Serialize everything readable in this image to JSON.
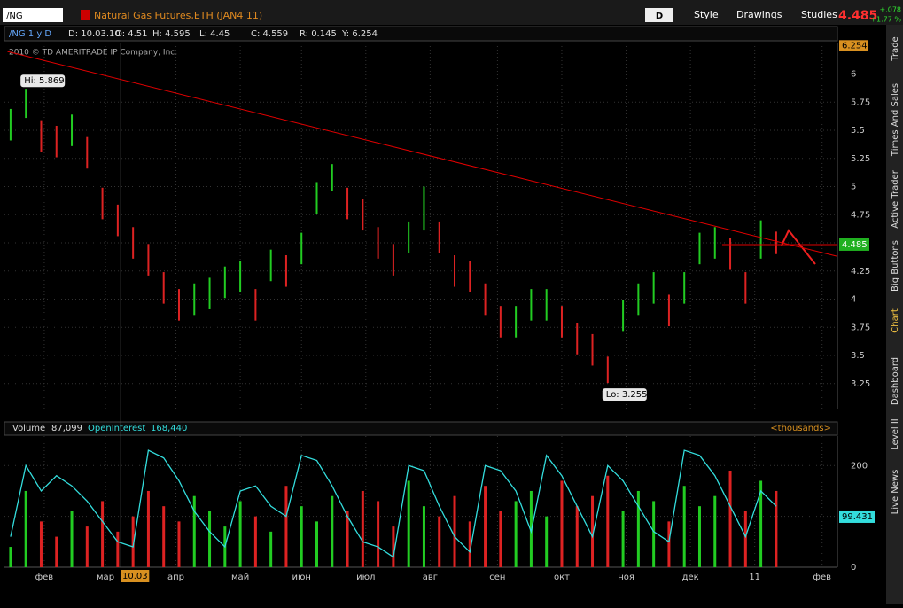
{
  "toolbar": {
    "symbol": "/NG",
    "description": "Natural Gas Futures,ETH (JAN4 11)",
    "period": "D",
    "buttons": [
      "Style",
      "Drawings",
      "Studies"
    ],
    "last": "4.485",
    "change": "+.078",
    "change_pct": "+1.77 %"
  },
  "side_tabs": [
    "Trade",
    "Times And Sales",
    "Active Trader",
    "Big Buttons",
    "Chart",
    "Dashboard",
    "Level II",
    "Live News"
  ],
  "chart_data": [
    {
      "type": "range-bar",
      "header": [
        "/NG 1 y D",
        "D: 10.03.10",
        "O: 4.51",
        "H: 4.595",
        "L: 4.45",
        "C: 4.559",
        "R: 0.145",
        "Y: 6.254"
      ],
      "copyright": "2010 © TD AMERITRADE IP Company, Inc.",
      "x": [
        0,
        5,
        10,
        15,
        20,
        25,
        30,
        35,
        40,
        45,
        50,
        55,
        60,
        65,
        70,
        75,
        80,
        85,
        90,
        95,
        100,
        105,
        110,
        115,
        120,
        125,
        130,
        135,
        140,
        145,
        150,
        155,
        160,
        165,
        170,
        175,
        180,
        185,
        190,
        195,
        200,
        205,
        210,
        215,
        220,
        225,
        230,
        235,
        240,
        245,
        250
      ],
      "high": [
        5.69,
        5.869,
        5.59,
        5.54,
        5.64,
        5.44,
        4.99,
        4.84,
        4.64,
        4.49,
        4.24,
        4.09,
        4.14,
        4.19,
        4.29,
        4.34,
        4.09,
        4.44,
        4.39,
        4.59,
        5.04,
        5.2,
        4.99,
        4.89,
        4.64,
        4.49,
        4.69,
        5.0,
        4.69,
        4.39,
        4.34,
        4.14,
        3.94,
        3.94,
        4.09,
        4.09,
        3.94,
        3.79,
        3.69,
        3.49,
        3.99,
        4.14,
        4.24,
        4.04,
        4.24,
        4.59,
        4.64,
        4.54,
        4.24,
        4.7,
        4.6
      ],
      "low": [
        5.41,
        5.61,
        5.31,
        5.26,
        5.36,
        5.16,
        4.71,
        4.56,
        4.36,
        4.21,
        3.96,
        3.81,
        3.86,
        3.91,
        4.01,
        4.06,
        3.81,
        4.16,
        4.11,
        4.31,
        4.76,
        4.96,
        4.71,
        4.61,
        4.36,
        4.21,
        4.41,
        4.61,
        4.41,
        4.11,
        4.06,
        3.86,
        3.66,
        3.66,
        3.81,
        3.81,
        3.66,
        3.51,
        3.41,
        3.255,
        3.71,
        3.86,
        3.96,
        3.76,
        3.96,
        4.31,
        4.36,
        4.26,
        3.96,
        4.36,
        4.4
      ],
      "up_color": "#22cc22",
      "down_color": "#dd2222",
      "xlim": [
        -2,
        270
      ],
      "xticks": [
        {
          "value": 11,
          "label": "фев"
        },
        {
          "value": 31,
          "label": "мар"
        },
        {
          "value": 54,
          "label": "апр"
        },
        {
          "value": 75,
          "label": "май"
        },
        {
          "value": 95,
          "label": "июн"
        },
        {
          "value": 116,
          "label": "июл"
        },
        {
          "value": 137,
          "label": "авг"
        },
        {
          "value": 159,
          "label": "сен"
        },
        {
          "value": 180,
          "label": "окт"
        },
        {
          "value": 201,
          "label": "ноя"
        },
        {
          "value": 222,
          "label": "дек"
        },
        {
          "value": 243,
          "label": "11"
        },
        {
          "value": 265,
          "label": "фев"
        }
      ],
      "ylim": [
        3.02,
        6.28
      ],
      "yticks": [
        3.25,
        3.5,
        3.75,
        4,
        4.25,
        4.5,
        4.75,
        5,
        5.25,
        5.5,
        5.75,
        6
      ],
      "grid": true,
      "annotations": [
        {
          "label": "Hi: 5.869",
          "x": 5,
          "y": 5.869
        },
        {
          "label": "Lo: 3.255",
          "x": 195,
          "y": 3.255
        }
      ],
      "trendline": {
        "x": [
          -1,
          270
        ],
        "y": [
          6.2,
          4.38
        ],
        "color": "#e00000"
      },
      "last_price": 4.485,
      "top_marker": 6.254,
      "cursor": {
        "x": 36,
        "label": "10.03"
      }
    },
    {
      "type": "bar",
      "header": {
        "volume": "87,099",
        "open_interest": "168,440",
        "units": "<thousands>"
      },
      "x": [
        0,
        5,
        10,
        15,
        20,
        25,
        30,
        35,
        40,
        45,
        50,
        55,
        60,
        65,
        70,
        75,
        80,
        85,
        90,
        95,
        100,
        105,
        110,
        115,
        120,
        125,
        130,
        135,
        140,
        145,
        150,
        155,
        160,
        165,
        170,
        175,
        180,
        185,
        190,
        195,
        200,
        205,
        210,
        215,
        220,
        225,
        230,
        235,
        240,
        245,
        250
      ],
      "ylim": [
        0,
        258
      ],
      "yticks": [
        0,
        100,
        200
      ],
      "series": [
        {
          "name": "Volume",
          "values": [
            40,
            150,
            90,
            60,
            110,
            80,
            130,
            70,
            100,
            150,
            120,
            90,
            140,
            110,
            80,
            130,
            100,
            70,
            160,
            120,
            90,
            140,
            110,
            150,
            130,
            80,
            170,
            120,
            100,
            140,
            90,
            160,
            110,
            130,
            150,
            100,
            170,
            120,
            140,
            180,
            110,
            150,
            130,
            90,
            160,
            120,
            140,
            190,
            110,
            170,
            150
          ]
        },
        {
          "name": "OpenInterest",
          "color": "#33dddd",
          "values": [
            60,
            200,
            150,
            180,
            160,
            130,
            90,
            50,
            40,
            230,
            215,
            170,
            110,
            70,
            40,
            150,
            160,
            120,
            100,
            220,
            210,
            160,
            100,
            50,
            40,
            20,
            200,
            190,
            120,
            60,
            30,
            200,
            190,
            150,
            70,
            220,
            180,
            120,
            60,
            200,
            170,
            120,
            70,
            50,
            230,
            220,
            180,
            120,
            60,
            150,
            120
          ]
        }
      ],
      "last_value": 99.431
    }
  ]
}
